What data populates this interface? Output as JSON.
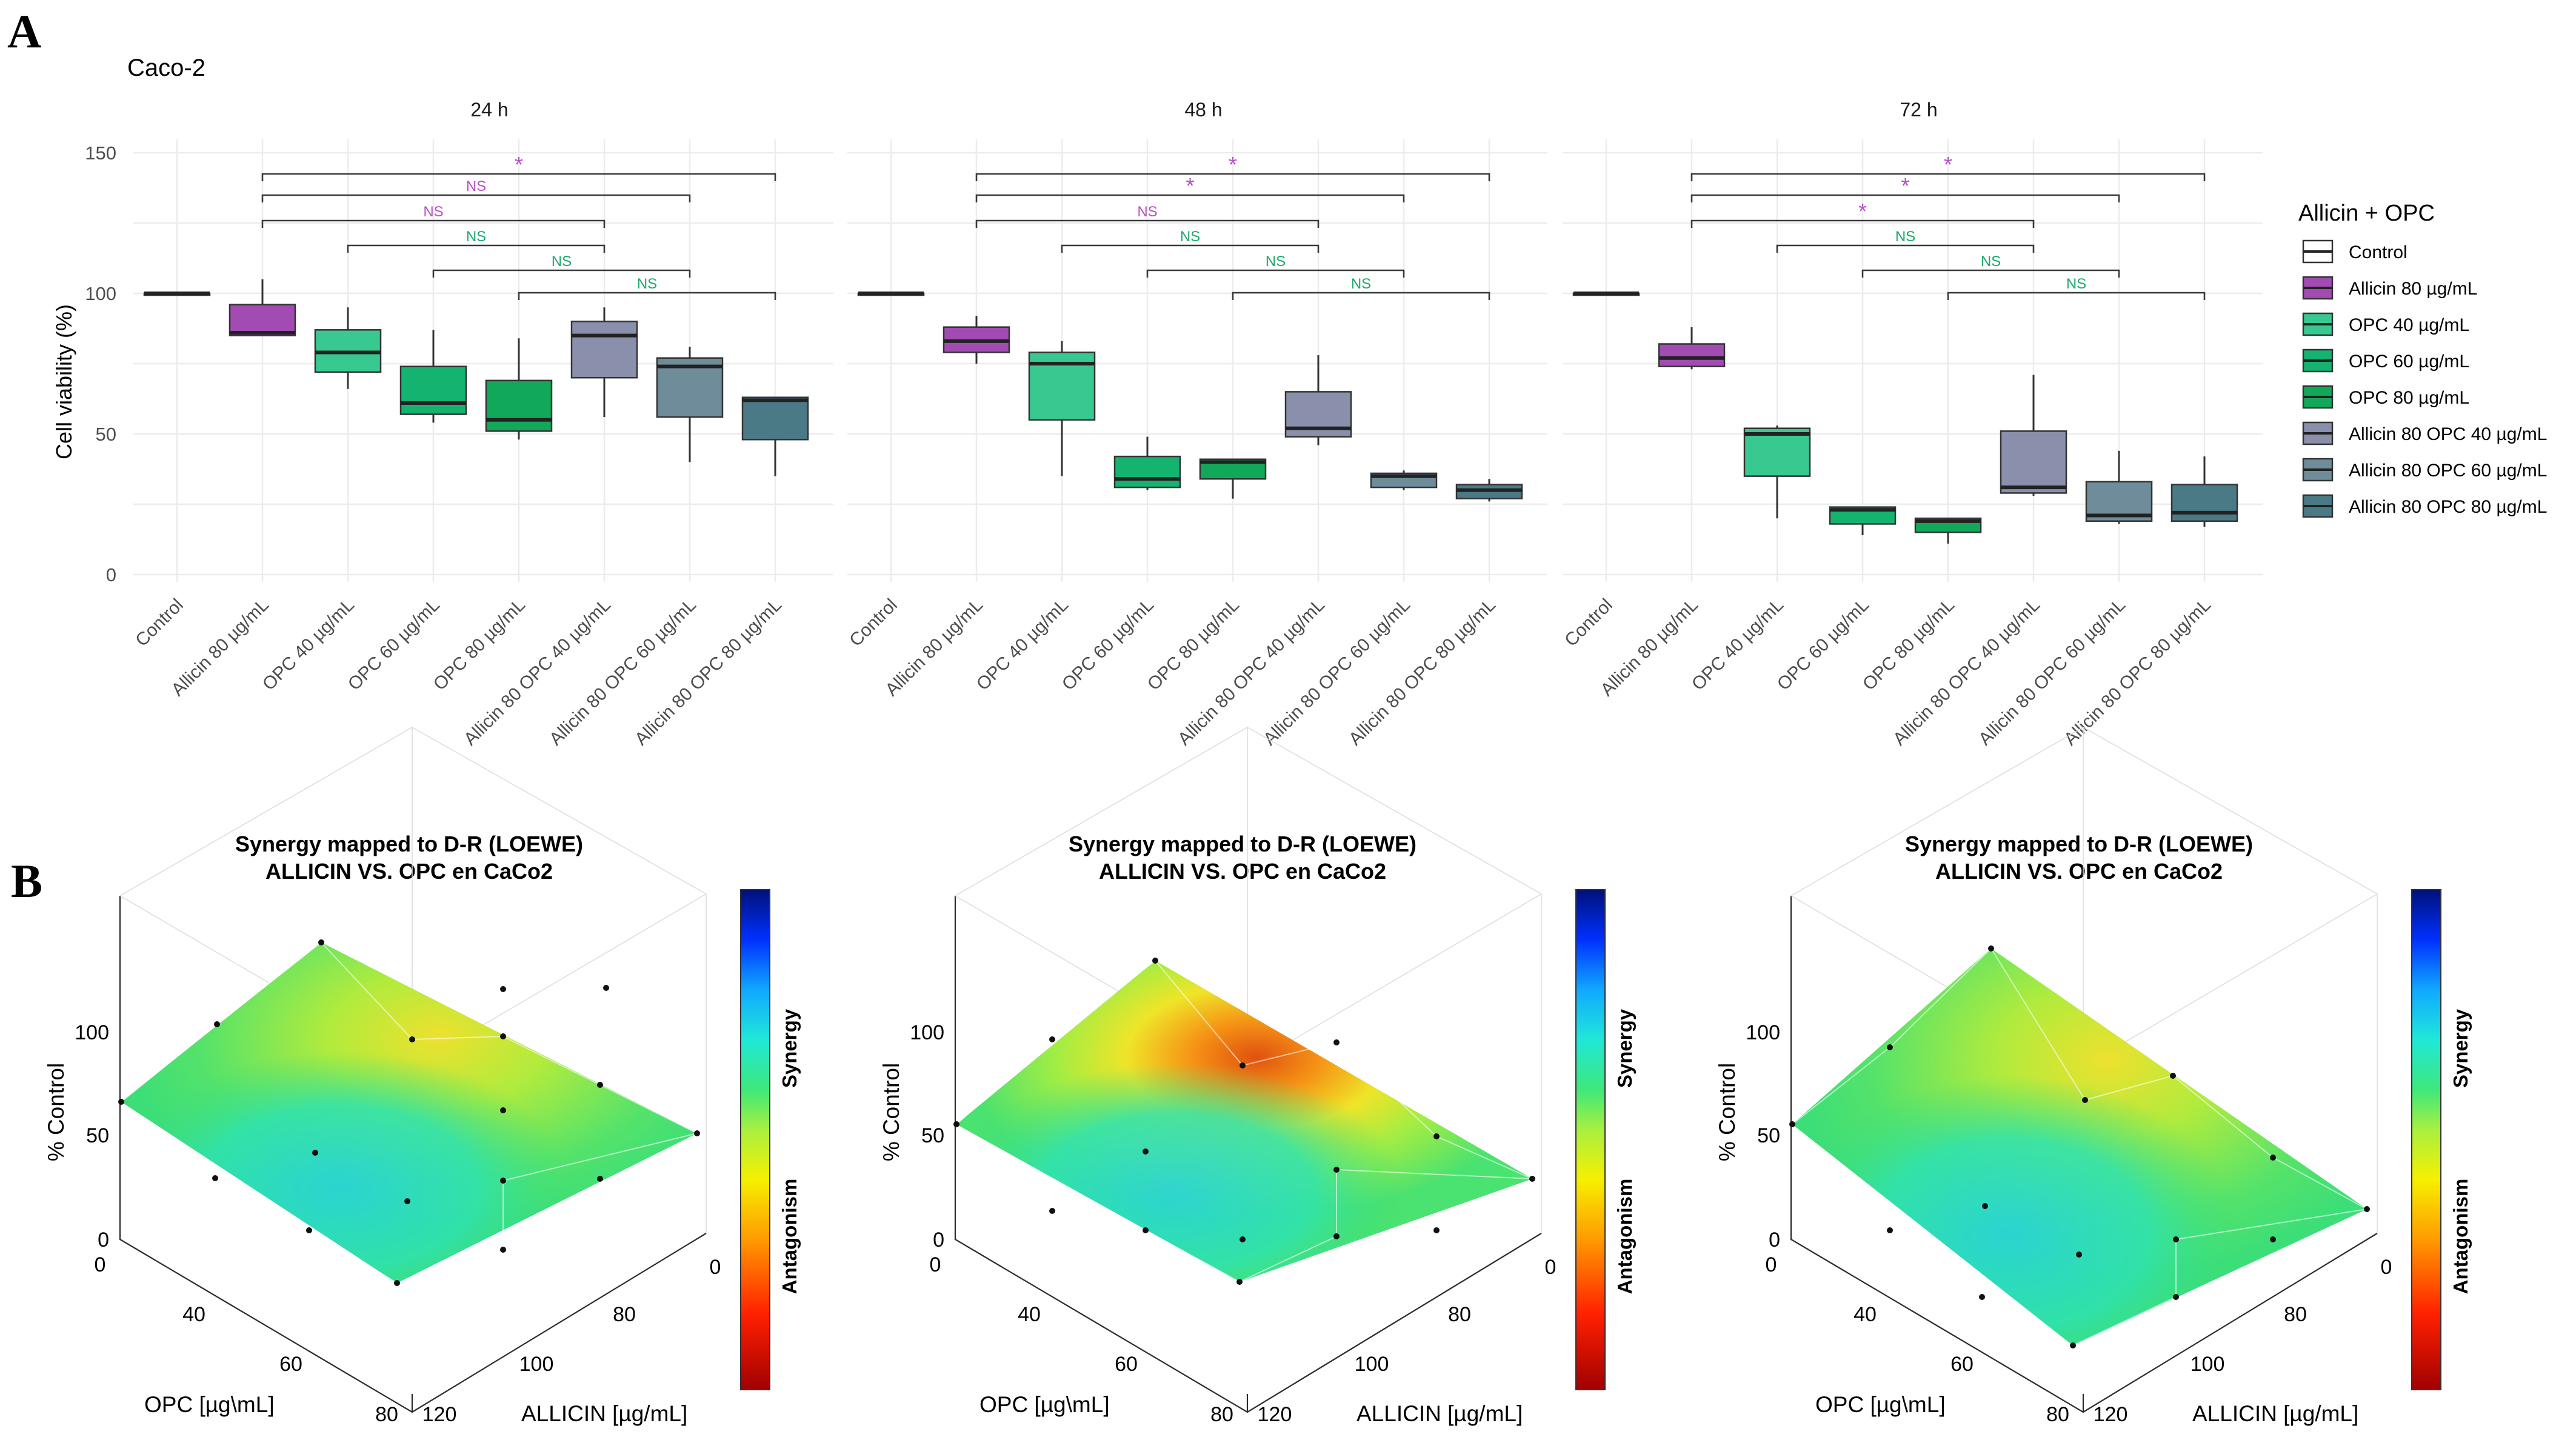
{
  "colors": {
    "Control": "#ffffff",
    "Allicin 80 µg/mL": "#a24bb3",
    "OPC 40 µg/mL": "#37c98f",
    "OPC 60 µg/mL": "#14b36f",
    "OPC 80 µg/mL": "#12a85a",
    "Allicin 80 OPC 40 µg/mL": "#8a8fab",
    "Allicin 80 OPC 60 µg/mL": "#6f8c9a",
    "Allicin 80 OPC 80 µg/mL": "#4b7a87",
    "sig_purple": "#b84ec6",
    "sig_green": "#1aaa6a"
  },
  "panelA": {
    "letter": "A",
    "cell_line": "Caco-2",
    "legend": {
      "title": "Allicin + OPC",
      "items": [
        "Control",
        "Allicin 80 µg/mL",
        "OPC 40 µg/mL",
        "OPC 60 µg/mL",
        "OPC 80 µg/mL",
        "Allicin 80 OPC 40 µg/mL",
        "Allicin 80 OPC 60 µg/mL",
        "Allicin 80 OPC 80 µg/mL"
      ]
    }
  },
  "chart_data": [
    {
      "type": "boxplot",
      "title": "24 h",
      "ylabel": "Cell viability (%)",
      "ylim": [
        0,
        150
      ],
      "yticks": [
        0,
        50,
        100,
        150
      ],
      "categories": [
        "Control",
        "Allicin 80 µg/mL",
        "OPC 40 µg/mL",
        "OPC 60 µg/mL",
        "OPC 80 µg/mL",
        "Allicin 80 OPC 40 µg/mL",
        "Allicin 80 OPC 60 µg/mL",
        "Allicin 80 OPC 80 µg/mL"
      ],
      "boxes": [
        {
          "min": 100,
          "q1": 100,
          "median": 100,
          "q3": 100,
          "max": 100
        },
        {
          "min": 85,
          "q1": 85,
          "median": 86,
          "q3": 96,
          "max": 105
        },
        {
          "min": 66,
          "q1": 72,
          "median": 79,
          "q3": 87,
          "max": 95
        },
        {
          "min": 54,
          "q1": 57,
          "median": 61,
          "q3": 74,
          "max": 87
        },
        {
          "min": 48,
          "q1": 51,
          "median": 55,
          "q3": 69,
          "max": 84
        },
        {
          "min": 56,
          "q1": 70,
          "median": 85,
          "q3": 90,
          "max": 95
        },
        {
          "min": 40,
          "q1": 56,
          "median": 74,
          "q3": 77,
          "max": 81
        },
        {
          "min": 35,
          "q1": 48,
          "median": 62,
          "q3": 63,
          "max": 63
        }
      ],
      "comparisons": [
        {
          "from": 1,
          "to": 7,
          "label": "*",
          "color": "purple"
        },
        {
          "from": 1,
          "to": 6,
          "label": "NS",
          "color": "purple"
        },
        {
          "from": 1,
          "to": 5,
          "label": "NS",
          "color": "purple"
        },
        {
          "from": 2,
          "to": 5,
          "label": "NS",
          "color": "green"
        },
        {
          "from": 3,
          "to": 6,
          "label": "NS",
          "color": "green"
        },
        {
          "from": 4,
          "to": 7,
          "label": "NS",
          "color": "green"
        }
      ]
    },
    {
      "type": "boxplot",
      "title": "48 h",
      "ylabel": "Cell viability (%)",
      "ylim": [
        0,
        150
      ],
      "yticks": [
        0,
        50,
        100,
        150
      ],
      "categories": [
        "Control",
        "Allicin 80 µg/mL",
        "OPC 40 µg/mL",
        "OPC 60 µg/mL",
        "OPC 80 µg/mL",
        "Allicin 80 OPC 40 µg/mL",
        "Allicin 80 OPC 60 µg/mL",
        "Allicin 80 OPC 80 µg/mL"
      ],
      "boxes": [
        {
          "min": 100,
          "q1": 100,
          "median": 100,
          "q3": 100,
          "max": 100
        },
        {
          "min": 75,
          "q1": 79,
          "median": 83,
          "q3": 88,
          "max": 92
        },
        {
          "min": 35,
          "q1": 55,
          "median": 75,
          "q3": 79,
          "max": 83
        },
        {
          "min": 30,
          "q1": 31,
          "median": 34,
          "q3": 42,
          "max": 49
        },
        {
          "min": 27,
          "q1": 34,
          "median": 40,
          "q3": 41,
          "max": 41
        },
        {
          "min": 46,
          "q1": 49,
          "median": 52,
          "q3": 65,
          "max": 78
        },
        {
          "min": 30,
          "q1": 31,
          "median": 35,
          "q3": 36,
          "max": 37
        },
        {
          "min": 26,
          "q1": 27,
          "median": 30,
          "q3": 32,
          "max": 34
        }
      ],
      "comparisons": [
        {
          "from": 1,
          "to": 7,
          "label": "*",
          "color": "purple"
        },
        {
          "from": 1,
          "to": 6,
          "label": "*",
          "color": "purple"
        },
        {
          "from": 1,
          "to": 5,
          "label": "NS",
          "color": "purple"
        },
        {
          "from": 2,
          "to": 5,
          "label": "NS",
          "color": "green"
        },
        {
          "from": 3,
          "to": 6,
          "label": "NS",
          "color": "green"
        },
        {
          "from": 4,
          "to": 7,
          "label": "NS",
          "color": "green"
        }
      ]
    },
    {
      "type": "boxplot",
      "title": "72 h",
      "ylabel": "Cell viability (%)",
      "ylim": [
        0,
        150
      ],
      "yticks": [
        0,
        50,
        100,
        150
      ],
      "categories": [
        "Control",
        "Allicin 80 µg/mL",
        "OPC 40 µg/mL",
        "OPC 60 µg/mL",
        "OPC 80 µg/mL",
        "Allicin 80 OPC 40 µg/mL",
        "Allicin 80 OPC 60 µg/mL",
        "Allicin 80 OPC 80 µg/mL"
      ],
      "boxes": [
        {
          "min": 100,
          "q1": 100,
          "median": 100,
          "q3": 100,
          "max": 100
        },
        {
          "min": 73,
          "q1": 74,
          "median": 77,
          "q3": 82,
          "max": 88
        },
        {
          "min": 20,
          "q1": 35,
          "median": 50,
          "q3": 52,
          "max": 53
        },
        {
          "min": 14,
          "q1": 18,
          "median": 23,
          "q3": 24,
          "max": 24
        },
        {
          "min": 11,
          "q1": 15,
          "median": 19,
          "q3": 20,
          "max": 20
        },
        {
          "min": 28,
          "q1": 29,
          "median": 31,
          "q3": 51,
          "max": 71
        },
        {
          "min": 18,
          "q1": 19,
          "median": 21,
          "q3": 33,
          "max": 44
        },
        {
          "min": 17,
          "q1": 19,
          "median": 22,
          "q3": 32,
          "max": 42
        }
      ],
      "comparisons": [
        {
          "from": 1,
          "to": 7,
          "label": "*",
          "color": "purple"
        },
        {
          "from": 1,
          "to": 6,
          "label": "*",
          "color": "purple"
        },
        {
          "from": 1,
          "to": 5,
          "label": "*",
          "color": "purple"
        },
        {
          "from": 2,
          "to": 5,
          "label": "NS",
          "color": "green"
        },
        {
          "from": 3,
          "to": 6,
          "label": "NS",
          "color": "green"
        },
        {
          "from": 4,
          "to": 7,
          "label": "NS",
          "color": "green"
        }
      ]
    },
    {
      "type": "surface3d",
      "title": "Synergy mapped to D-R (LOEWE)",
      "subtitle": "ALLICIN VS. OPC en CaCo2",
      "zlabel": "% Control",
      "xlabel": "OPC [µg\\mL]",
      "ylabel": "ALLICIN [µg/mL]",
      "zticks": [
        "0",
        "50",
        "100"
      ],
      "xticks": [
        "0",
        "40",
        "60",
        "80"
      ],
      "yticks": [
        "0",
        "80",
        "100",
        "120"
      ],
      "colorbar": {
        "top": "Synergy",
        "bottom": "Antagonism"
      },
      "hotspot": "yellow"
    },
    {
      "type": "surface3d",
      "title": "Synergy mapped to D-R (LOEWE)",
      "subtitle": "ALLICIN VS. OPC en CaCo2",
      "zlabel": "% Control",
      "xlabel": "OPC [µg\\mL]",
      "ylabel": "ALLICIN [µg/mL]",
      "zticks": [
        "0",
        "50",
        "100"
      ],
      "xticks": [
        "0",
        "40",
        "60",
        "80"
      ],
      "yticks": [
        "0",
        "80",
        "100",
        "120"
      ],
      "colorbar": {
        "top": "Synergy",
        "bottom": "Antagonism"
      },
      "hotspot": "red"
    },
    {
      "type": "surface3d",
      "title": "Synergy mapped to D-R (LOEWE)",
      "subtitle": "ALLICIN VS. OPC en CaCo2",
      "zlabel": "% Control",
      "xlabel": "OPC [µg\\mL]",
      "ylabel": "ALLICIN [µg/mL]",
      "zticks": [
        "0",
        "50",
        "100"
      ],
      "xticks": [
        "0",
        "40",
        "60",
        "80"
      ],
      "yticks": [
        "0",
        "80",
        "100",
        "120"
      ],
      "colorbar": {
        "top": "Synergy",
        "bottom": "Antagonism"
      },
      "hotspot": "yellow"
    }
  ],
  "panelB": {
    "letter": "B"
  }
}
